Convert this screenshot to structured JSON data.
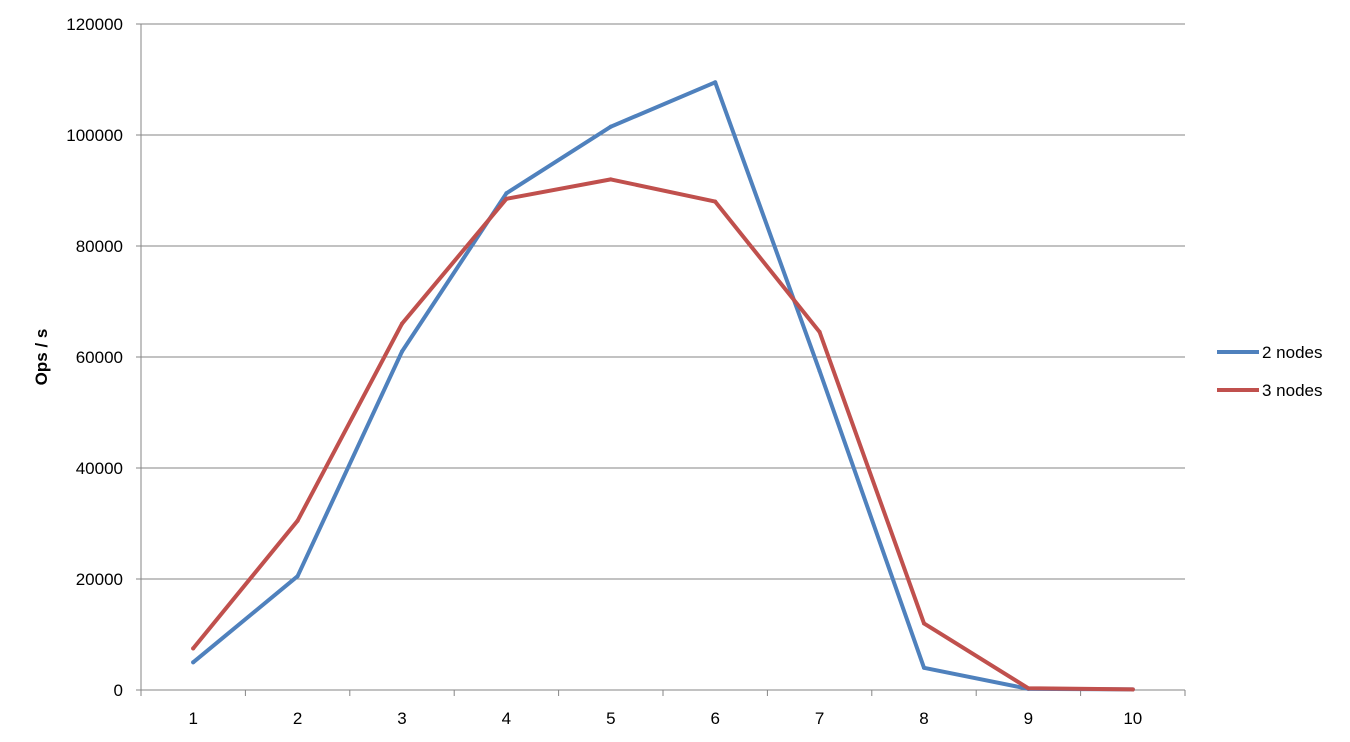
{
  "chart_data": {
    "type": "line",
    "title": "",
    "xlabel": "",
    "ylabel": "Ops / s",
    "x": [
      "1",
      "2",
      "3",
      "4",
      "5",
      "6",
      "7",
      "8",
      "9",
      "10"
    ],
    "ylim": [
      0,
      120000
    ],
    "yticks": [
      "0",
      "20000",
      "40000",
      "60000",
      "80000",
      "100000",
      "120000"
    ],
    "grid": true,
    "legend_position": "right",
    "series": [
      {
        "name": "2 nodes",
        "color": "#4F81BD",
        "values": [
          5000,
          20500,
          61000,
          89500,
          101500,
          109500,
          57500,
          4000,
          200,
          100
        ]
      },
      {
        "name": "3 nodes",
        "color": "#C0504D",
        "values": [
          7500,
          30500,
          66000,
          88500,
          92000,
          88000,
          64500,
          12000,
          300,
          100
        ]
      }
    ]
  }
}
